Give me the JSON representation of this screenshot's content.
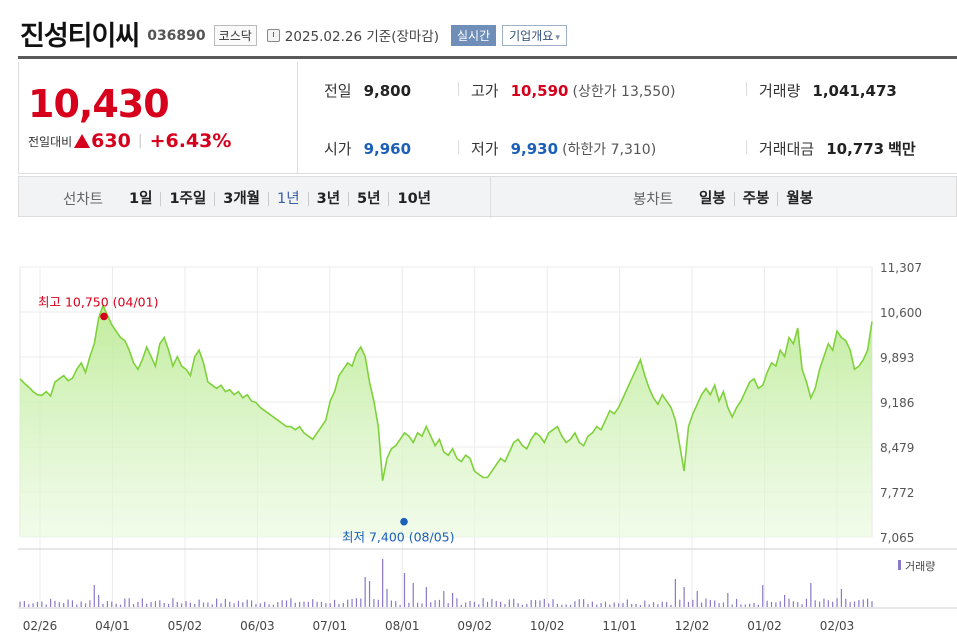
{
  "header": {
    "company": "진성티이씨",
    "code": "036890",
    "market": "코스닥",
    "date": "2025.02.26  기준(장마감)",
    "realtime": "실시간",
    "info_button": "기업개요",
    "info_caret": "▾"
  },
  "price": {
    "current": "10,430",
    "change_label": "전일대비",
    "change": "630",
    "change_pct": "+6.43%",
    "separator": "|"
  },
  "stats": {
    "prev_close": {
      "label": "전일",
      "value": "9,800"
    },
    "open": {
      "label": "시가",
      "value": "9,960"
    },
    "high": {
      "label": "고가",
      "value": "10,590",
      "sub": "(상한가 13,550)"
    },
    "low": {
      "label": "저가",
      "value": "9,930",
      "sub": "(하한가 7,310)"
    },
    "volume": {
      "label": "거래량",
      "value": "1,041,473"
    },
    "amount": {
      "label": "거래대금",
      "value": "10,773",
      "unit": "백만"
    }
  },
  "tabs": {
    "line_title": "선차트",
    "line": [
      "1일",
      "1주일",
      "3개월",
      "1년",
      "3년",
      "5년",
      "10년"
    ],
    "active": "1년",
    "candle_title": "봉차트",
    "candle": [
      "일봉",
      "주봉",
      "월봉"
    ]
  },
  "chart_data": {
    "type": "area",
    "x_ticks": [
      "02/26",
      "04/01",
      "05/02",
      "06/03",
      "07/01",
      "08/01",
      "09/02",
      "10/02",
      "11/01",
      "12/02",
      "01/02",
      "02/03"
    ],
    "y_ticks": [
      11307,
      10600,
      9893,
      9186,
      8479,
      7772,
      7065
    ],
    "y_tick_labels": [
      "11,307",
      "10,600",
      "9,893",
      "9,186",
      "8,479",
      "7,772",
      "7,065"
    ],
    "ylim": [
      7065,
      11307
    ],
    "high_label": "최고 10,750 (04/01)",
    "high_value": 10750,
    "low_label": "최저 7,400 (08/05)",
    "low_value": 7400,
    "volume_legend": "거래량",
    "line_color": "#7fd13b",
    "fill_color": "#c9f1a8",
    "volume_color": "#8a78c8",
    "marker_high_color": "#d6001c",
    "marker_low_color": "#1b5fb8",
    "prices": [
      9550,
      9480,
      9420,
      9350,
      9300,
      9290,
      9350,
      9280,
      9500,
      9550,
      9600,
      9520,
      9560,
      9700,
      9800,
      9650,
      9900,
      10100,
      10500,
      10700,
      10550,
      10400,
      10300,
      10200,
      10150,
      10000,
      9800,
      9700,
      9850,
      10050,
      9900,
      9750,
      10100,
      10200,
      10000,
      9750,
      9900,
      9750,
      9700,
      9600,
      9900,
      10000,
      9800,
      9500,
      9450,
      9400,
      9450,
      9350,
      9380,
      9300,
      9350,
      9250,
      9300,
      9200,
      9180,
      9100,
      9050,
      9000,
      8950,
      8900,
      8850,
      8800,
      8800,
      8750,
      8800,
      8700,
      8650,
      8600,
      8700,
      8800,
      8900,
      9200,
      9350,
      9600,
      9700,
      9800,
      9750,
      9950,
      10050,
      9900,
      9500,
      9200,
      8800,
      7950,
      8300,
      8450,
      8500,
      8600,
      8700,
      8650,
      8550,
      8700,
      8650,
      8800,
      8650,
      8500,
      8600,
      8400,
      8350,
      8450,
      8300,
      8250,
      8350,
      8300,
      8100,
      8050,
      8000,
      8000,
      8100,
      8200,
      8300,
      8250,
      8400,
      8550,
      8600,
      8500,
      8450,
      8600,
      8700,
      8650,
      8550,
      8700,
      8750,
      8800,
      8650,
      8550,
      8600,
      8700,
      8550,
      8500,
      8650,
      8700,
      8800,
      8750,
      8900,
      9050,
      9000,
      9100,
      9250,
      9400,
      9550,
      9700,
      9850,
      9600,
      9400,
      9250,
      9150,
      9300,
      9200,
      9100,
      8900,
      8500,
      8100,
      8800,
      9000,
      9150,
      9300,
      9400,
      9300,
      9450,
      9200,
      9350,
      9100,
      8950,
      9100,
      9200,
      9350,
      9500,
      9550,
      9400,
      9450,
      9650,
      9800,
      9750,
      10000,
      9900,
      10200,
      10100,
      10350,
      9700,
      9500,
      9250,
      9400,
      9700,
      9900,
      10100,
      10000,
      10300,
      10200,
      10150,
      10000,
      9700,
      9750,
      9850,
      10000,
      10450
    ]
  }
}
